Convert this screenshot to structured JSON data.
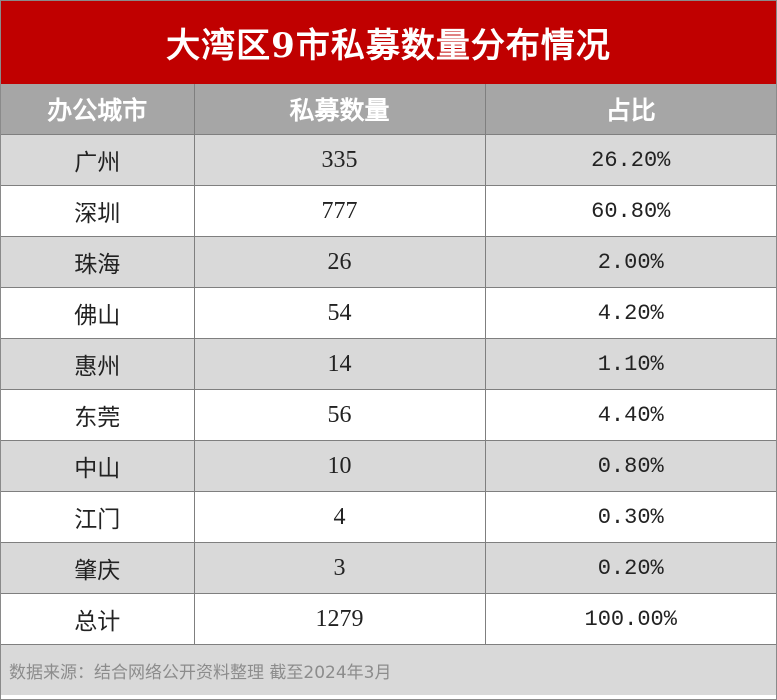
{
  "chart_data": {
    "type": "table",
    "title": "大湾区9市私募数量分布情况",
    "columns": [
      "办公城市",
      "私募数量",
      "占比"
    ],
    "rows": [
      {
        "city": "广州",
        "count": "335",
        "share": "26.20%"
      },
      {
        "city": "深圳",
        "count": "777",
        "share": "60.80%"
      },
      {
        "city": "珠海",
        "count": "26",
        "share": "2.00%"
      },
      {
        "city": "佛山",
        "count": "54",
        "share": "4.20%"
      },
      {
        "city": "惠州",
        "count": "14",
        "share": "1.10%"
      },
      {
        "city": "东莞",
        "count": "56",
        "share": "4.40%"
      },
      {
        "city": "中山",
        "count": "10",
        "share": "0.80%"
      },
      {
        "city": "江门",
        "count": "4",
        "share": "0.30%"
      },
      {
        "city": "肇庆",
        "count": "3",
        "share": "0.20%"
      },
      {
        "city": "总计",
        "count": "1279",
        "share": "100.00%"
      }
    ],
    "source": "数据来源：结合网络公开资料整理 截至2024年3月"
  },
  "colors": {
    "title_background": "#c00000",
    "header_background": "#a6a6a6",
    "stripe_background": "#d9d9d9"
  }
}
